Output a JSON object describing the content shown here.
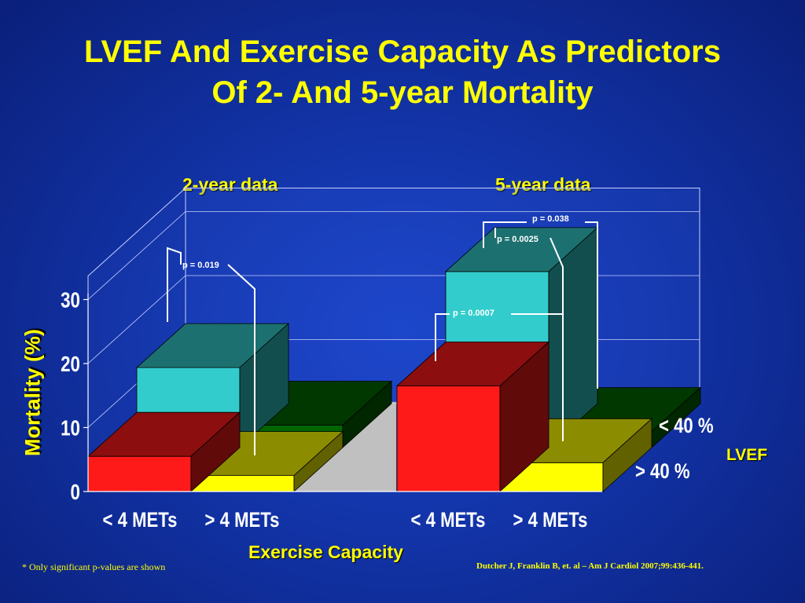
{
  "slide": {
    "title_line1": "LVEF And Exercise Capacity As Predictors",
    "title_line2": "Of 2- And 5-year Mortality",
    "footnote": "* Only significant p-values are shown",
    "citation": "Dutcher J, Franklin B, et. al – Am J Cardiol 2007;99:436-441."
  },
  "colors": {
    "lvef_gt40": "#ff1a1a",
    "lvef_gt40_alt": "#ffff00",
    "lvef_lt40": "#33cccc",
    "lvef_lt40_alt": "#006600",
    "background": "#1233a6",
    "text": "#ffff00"
  },
  "chart_data": {
    "type": "bar",
    "title": "",
    "xlabel": "Exercise Capacity",
    "ylabel": "Mortality (%)",
    "ylim": [
      0,
      30
    ],
    "yticks": [
      "0",
      "10",
      "20",
      "30"
    ],
    "groups": [
      {
        "label": "2-year data",
        "categories": [
          "< 4 METs",
          "> 4 METs"
        ]
      },
      {
        "label": "5-year data",
        "categories": [
          "< 4 METs",
          "> 4 METs"
        ]
      }
    ],
    "depth_labels": [
      "< 40 %",
      "> 40 %"
    ],
    "legend_title": "LVEF",
    "series": [
      {
        "name": "> 40 %",
        "values": [
          [
            5.5,
            2.5
          ],
          [
            16.5,
            4.5
          ]
        ]
      },
      {
        "name": "< 40 %",
        "values": [
          [
            12.5,
            3.5
          ],
          [
            27.5,
            2.5
          ]
        ]
      }
    ],
    "annotations": [
      "p = 0.019",
      "p = 0.038",
      "p = 0.0025",
      "p = 0.0007"
    ],
    "grid": true,
    "legend_placement": "right"
  }
}
